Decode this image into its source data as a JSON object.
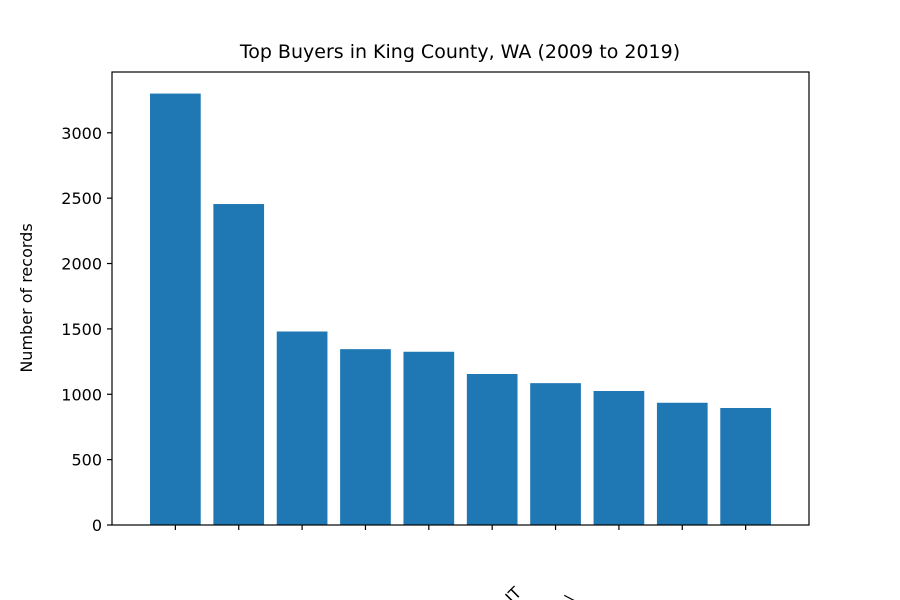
{
  "chart_data": {
    "type": "bar",
    "title": "Top Buyers in King County, WA (2009 to 2019)",
    "xlabel": "",
    "ylabel": "Number of records",
    "ylim": [
      0,
      3465
    ],
    "yticks": [
      0,
      500,
      1000,
      1500,
      2000,
      2500,
      3000
    ],
    "categories": [
      "",
      "",
      "",
      "",
      "",
      "",
      "",
      "",
      "",
      ""
    ],
    "values": [
      3300,
      2455,
      1480,
      1345,
      1325,
      1155,
      1085,
      1025,
      935,
      895
    ],
    "bar_color": "#1f77b4",
    "grid": false,
    "legend": "none",
    "cut_off_tick_text": [
      "IT",
      "\\"
    ]
  }
}
